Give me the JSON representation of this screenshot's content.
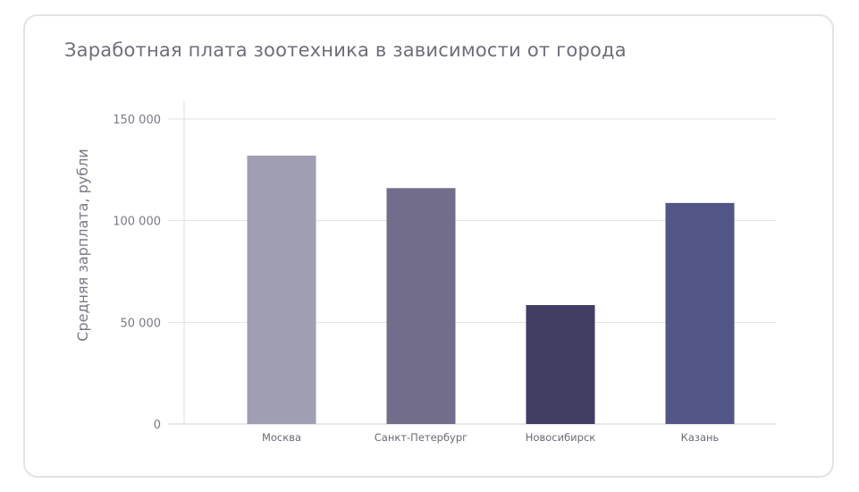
{
  "chart_data": {
    "type": "bar",
    "title": "Заработная плата зоотехника в зависимости от города",
    "xlabel": "",
    "ylabel": "Средняя зарплата, рубли",
    "categories": [
      "Москва",
      "Санкт-Петербург",
      "Новосибирск",
      "Казань"
    ],
    "values": [
      132000,
      116000,
      58500,
      108700
    ],
    "colors": [
      "#a09eb3",
      "#716d8a",
      "#403e63",
      "#525686"
    ],
    "ylim": [
      0,
      150000
    ],
    "yticks": [
      0,
      50000,
      100000,
      150000
    ],
    "ytick_labels": [
      "0",
      "50 000",
      "100 000",
      "150 000"
    ],
    "grid": true
  }
}
